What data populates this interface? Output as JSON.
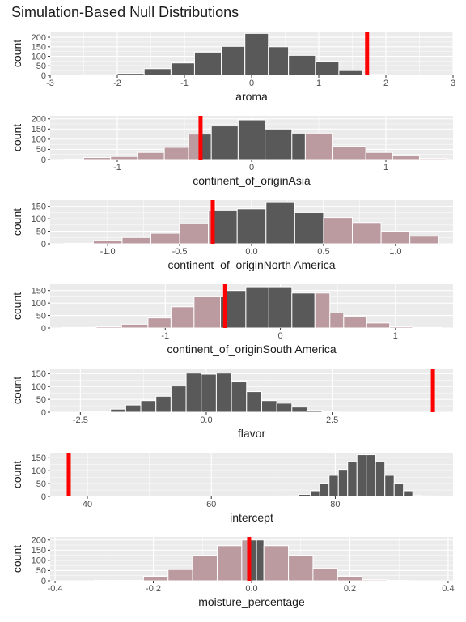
{
  "title": "Simulation-Based Null Distributions",
  "colors": {
    "panel": "#ebebeb",
    "grid_major": "#ffffff",
    "bar": "#595959",
    "shaded": "#bc9ba0",
    "obs": "#ff0000"
  },
  "chart_data": [
    {
      "type": "histogram",
      "xlabel": "aroma",
      "ylabel": "count",
      "xlim": [
        -3,
        3
      ],
      "xticks": [
        "-3",
        "-2",
        "-1",
        "0",
        "1",
        "2",
        "3"
      ],
      "xtick_values": [
        -3,
        -2,
        -1,
        0,
        1,
        2,
        3
      ],
      "ylim": [
        0,
        230
      ],
      "yticks": [
        "0",
        "50",
        "100",
        "150",
        "200"
      ],
      "ytick_values": [
        0,
        50,
        100,
        150,
        200
      ],
      "bin_edges": [
        -2.5,
        -2.0,
        -1.6,
        -1.2,
        -0.85,
        -0.45,
        -0.1,
        0.25,
        0.55,
        0.95,
        1.3,
        1.65,
        2.0,
        2.4,
        2.8
      ],
      "counts": [
        3,
        10,
        35,
        65,
        122,
        152,
        220,
        150,
        105,
        72,
        25,
        5,
        2,
        1
      ],
      "shaded": [
        false,
        false,
        false,
        false,
        false,
        false,
        false,
        false,
        false,
        false,
        false,
        true,
        true,
        true
      ],
      "observed": 1.72
    },
    {
      "type": "histogram",
      "xlabel": "continent_of_originAsia",
      "ylabel": "count",
      "xlim": [
        -1.5,
        1.5
      ],
      "xticks": [
        "-1",
        "0",
        "1"
      ],
      "xtick_values": [
        -1,
        0,
        1
      ],
      "ylim": [
        0,
        215
      ],
      "yticks": [
        "0",
        "50",
        "100",
        "150",
        "200"
      ],
      "ytick_values": [
        0,
        50,
        100,
        150,
        200
      ],
      "bin_edges": [
        -1.4,
        -1.25,
        -1.05,
        -0.85,
        -0.65,
        -0.47,
        -0.38,
        -0.3,
        -0.1,
        0.1,
        0.3,
        0.4,
        0.6,
        0.85,
        1.05,
        1.25,
        1.45
      ],
      "counts": [
        2,
        10,
        15,
        35,
        60,
        125,
        125,
        165,
        195,
        150,
        130,
        130,
        65,
        35,
        20,
        5
      ],
      "shaded": [
        true,
        true,
        true,
        true,
        true,
        true,
        false,
        false,
        false,
        false,
        false,
        true,
        true,
        true,
        true,
        true
      ],
      "observed": -0.38
    },
    {
      "type": "histogram",
      "xlabel": "continent_of_originNorth America",
      "ylabel": "count",
      "xlim": [
        -1.4,
        1.4
      ],
      "xticks": [
        "-1.0",
        "-0.5",
        "0.0",
        "0.5",
        "1.0"
      ],
      "xtick_values": [
        -1,
        -0.5,
        0,
        0.5,
        1
      ],
      "ylim": [
        0,
        175
      ],
      "yticks": [
        "0",
        "50",
        "100",
        "150"
      ],
      "ytick_values": [
        0,
        50,
        100,
        150
      ],
      "bin_edges": [
        -1.3,
        -1.1,
        -0.9,
        -0.7,
        -0.5,
        -0.3,
        -0.26,
        -0.1,
        0.1,
        0.3,
        0.5,
        0.7,
        0.9,
        1.1,
        1.3
      ],
      "counts": [
        2,
        13,
        25,
        42,
        80,
        135,
        135,
        140,
        165,
        125,
        105,
        85,
        50,
        30,
        15
      ],
      "shaded": [
        true,
        true,
        true,
        true,
        true,
        true,
        false,
        false,
        false,
        false,
        true,
        true,
        true,
        true,
        true
      ],
      "observed": -0.27
    },
    {
      "type": "histogram",
      "xlabel": "continent_of_originSouth America",
      "ylabel": "count",
      "xlim": [
        -2,
        1.5
      ],
      "xticks": [
        "-1",
        "0",
        "1"
      ],
      "xtick_values": [
        -1,
        0,
        1
      ],
      "ylim": [
        0,
        175
      ],
      "yticks": [
        "0",
        "50",
        "100",
        "150"
      ],
      "ytick_values": [
        0,
        50,
        100,
        150
      ],
      "bin_edges": [
        -1.9,
        -1.6,
        -1.38,
        -1.15,
        -0.95,
        -0.75,
        -0.52,
        -0.47,
        -0.3,
        -0.1,
        0.1,
        0.3,
        0.43,
        0.55,
        0.75,
        0.95,
        1.15,
        1.4
      ],
      "counts": [
        2,
        5,
        15,
        40,
        85,
        125,
        125,
        150,
        165,
        165,
        140,
        140,
        60,
        45,
        20,
        5,
        2
      ],
      "shaded": [
        true,
        true,
        true,
        true,
        true,
        true,
        false,
        false,
        false,
        false,
        false,
        true,
        true,
        true,
        true,
        true,
        true
      ],
      "observed": -0.48
    },
    {
      "type": "histogram",
      "xlabel": "flavor",
      "ylabel": "count",
      "xlim": [
        -3.1,
        4.9
      ],
      "xticks": [
        "-2.5",
        "0.0",
        "2.5"
      ],
      "xtick_values": [
        -2.5,
        0,
        2.5
      ],
      "ylim": [
        0,
        170
      ],
      "yticks": [
        "0",
        "50",
        "100",
        "150"
      ],
      "ytick_values": [
        0,
        50,
        100,
        150
      ],
      "bin_edges": [
        -2.5,
        -1.9,
        -1.6,
        -1.3,
        -1.0,
        -0.7,
        -0.4,
        -0.1,
        0.2,
        0.5,
        0.8,
        1.1,
        1.4,
        1.7,
        2.0,
        2.3,
        2.6
      ],
      "counts": [
        2,
        12,
        28,
        45,
        62,
        102,
        152,
        148,
        152,
        118,
        80,
        45,
        35,
        20,
        8,
        2
      ],
      "shaded": [
        false,
        false,
        false,
        false,
        false,
        false,
        false,
        false,
        false,
        false,
        false,
        false,
        false,
        false,
        false,
        false
      ],
      "observed": 4.5
    },
    {
      "type": "histogram",
      "xlabel": "intercept",
      "ylabel": "count",
      "xlim": [
        34,
        99
      ],
      "xticks": [
        "40",
        "60",
        "80"
      ],
      "xtick_values": [
        40,
        60,
        80
      ],
      "ylim": [
        0,
        170
      ],
      "yticks": [
        "0",
        "50",
        "100",
        "150"
      ],
      "ytick_values": [
        0,
        50,
        100,
        150
      ],
      "bin_edges": [
        70,
        72,
        74,
        76,
        77.5,
        79,
        80.5,
        82,
        83.5,
        85,
        86.5,
        88,
        89.5,
        91,
        92.5,
        94,
        96
      ],
      "counts": [
        1,
        2,
        8,
        22,
        52,
        82,
        105,
        135,
        162,
        162,
        135,
        82,
        52,
        22,
        5,
        2
      ],
      "shaded": [
        false,
        false,
        false,
        false,
        false,
        false,
        false,
        false,
        false,
        false,
        false,
        false,
        false,
        false,
        true,
        true
      ],
      "observed": 37.0
    },
    {
      "type": "histogram",
      "xlabel": "moisture_percentage",
      "ylabel": "count",
      "xlim": [
        -0.41,
        0.41
      ],
      "xticks": [
        "-0.4",
        "-0.2",
        "0.0",
        "0.2",
        "0.4"
      ],
      "xtick_values": [
        -0.4,
        -0.2,
        0,
        0.2,
        0.4
      ],
      "ylim": [
        0,
        215
      ],
      "yticks": [
        "0",
        "50",
        "100",
        "150",
        "200"
      ],
      "ytick_values": [
        0,
        50,
        100,
        150,
        200
      ],
      "bin_edges": [
        -0.32,
        -0.22,
        -0.17,
        -0.12,
        -0.07,
        -0.02,
        -0.005,
        0.01,
        0.025,
        0.075,
        0.125,
        0.175,
        0.225,
        0.275,
        0.32
      ],
      "counts": [
        2,
        22,
        55,
        125,
        172,
        200,
        200,
        200,
        172,
        125,
        62,
        22,
        5,
        2
      ],
      "shaded": [
        true,
        true,
        true,
        true,
        true,
        true,
        false,
        false,
        true,
        true,
        true,
        true,
        true,
        true
      ],
      "observed": -0.005
    }
  ]
}
